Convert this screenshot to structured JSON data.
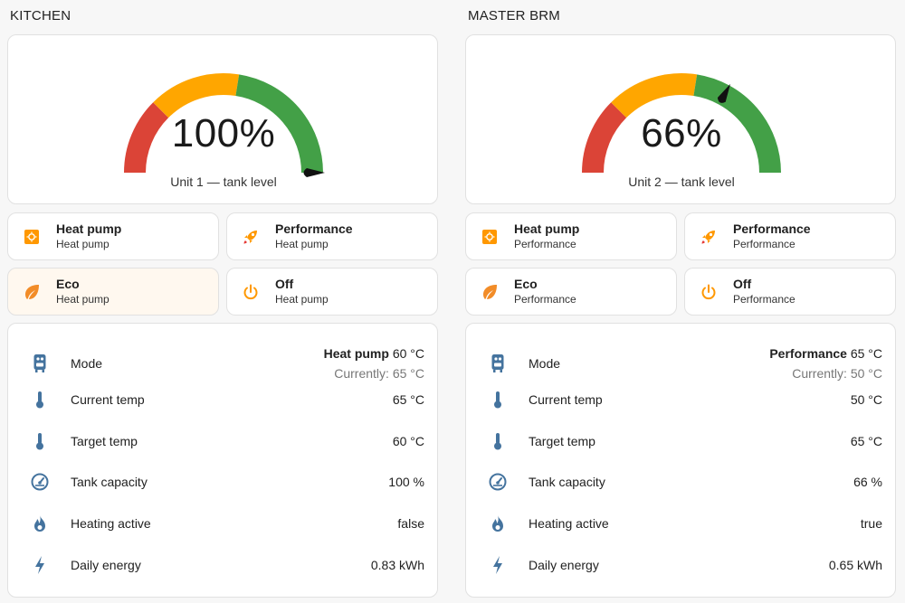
{
  "colors": {
    "gauge_red": "#db4437",
    "gauge_yellow": "#ffa600",
    "gauge_green": "#43a047",
    "icon_orange": "#ff9800",
    "icon_blue": "#44739e"
  },
  "units": [
    {
      "title": "KITCHEN",
      "gauge": {
        "value_text": "100%",
        "value": 100,
        "label": "Unit 1 — tank level"
      },
      "modes": [
        {
          "name": "Heat pump",
          "state": "Heat pump",
          "icon": "heat-pump-icon",
          "active": false
        },
        {
          "name": "Performance",
          "state": "Heat pump",
          "icon": "rocket-icon",
          "active": false
        },
        {
          "name": "Eco",
          "state": "Heat pump",
          "icon": "leaf-icon",
          "active": true
        },
        {
          "name": "Off",
          "state": "Heat pump",
          "icon": "power-icon",
          "active": false
        }
      ],
      "entities": {
        "mode": {
          "name": "Mode",
          "value_bold": "Heat pump",
          "value_target": "60 °C",
          "value_current": "Currently: 65 °C"
        },
        "rows": [
          {
            "name": "Current temp",
            "value": "65 °C",
            "icon": "thermometer-icon"
          },
          {
            "name": "Target temp",
            "value": "60 °C",
            "icon": "thermometer-icon"
          },
          {
            "name": "Tank capacity",
            "value": "100 %",
            "icon": "gauge-icon"
          },
          {
            "name": "Heating active",
            "value": "false",
            "icon": "fire-icon"
          },
          {
            "name": "Daily energy",
            "value": "0.83 kWh",
            "icon": "lightning-icon"
          }
        ]
      }
    },
    {
      "title": "MASTER BRM",
      "gauge": {
        "value_text": "66%",
        "value": 66,
        "label": "Unit 2 — tank level"
      },
      "modes": [
        {
          "name": "Heat pump",
          "state": "Performance",
          "icon": "heat-pump-icon",
          "active": false
        },
        {
          "name": "Performance",
          "state": "Performance",
          "icon": "rocket-icon",
          "active": false
        },
        {
          "name": "Eco",
          "state": "Performance",
          "icon": "leaf-icon",
          "active": false
        },
        {
          "name": "Off",
          "state": "Performance",
          "icon": "power-icon",
          "active": false
        }
      ],
      "entities": {
        "mode": {
          "name": "Mode",
          "value_bold": "Performance",
          "value_target": "65 °C",
          "value_current": "Currently: 50 °C"
        },
        "rows": [
          {
            "name": "Current temp",
            "value": "50 °C",
            "icon": "thermometer-icon"
          },
          {
            "name": "Target temp",
            "value": "65 °C",
            "icon": "thermometer-icon"
          },
          {
            "name": "Tank capacity",
            "value": "66 %",
            "icon": "gauge-icon"
          },
          {
            "name": "Heating active",
            "value": "true",
            "icon": "fire-icon"
          },
          {
            "name": "Daily energy",
            "value": "0.65 kWh",
            "icon": "lightning-icon"
          }
        ]
      }
    }
  ]
}
